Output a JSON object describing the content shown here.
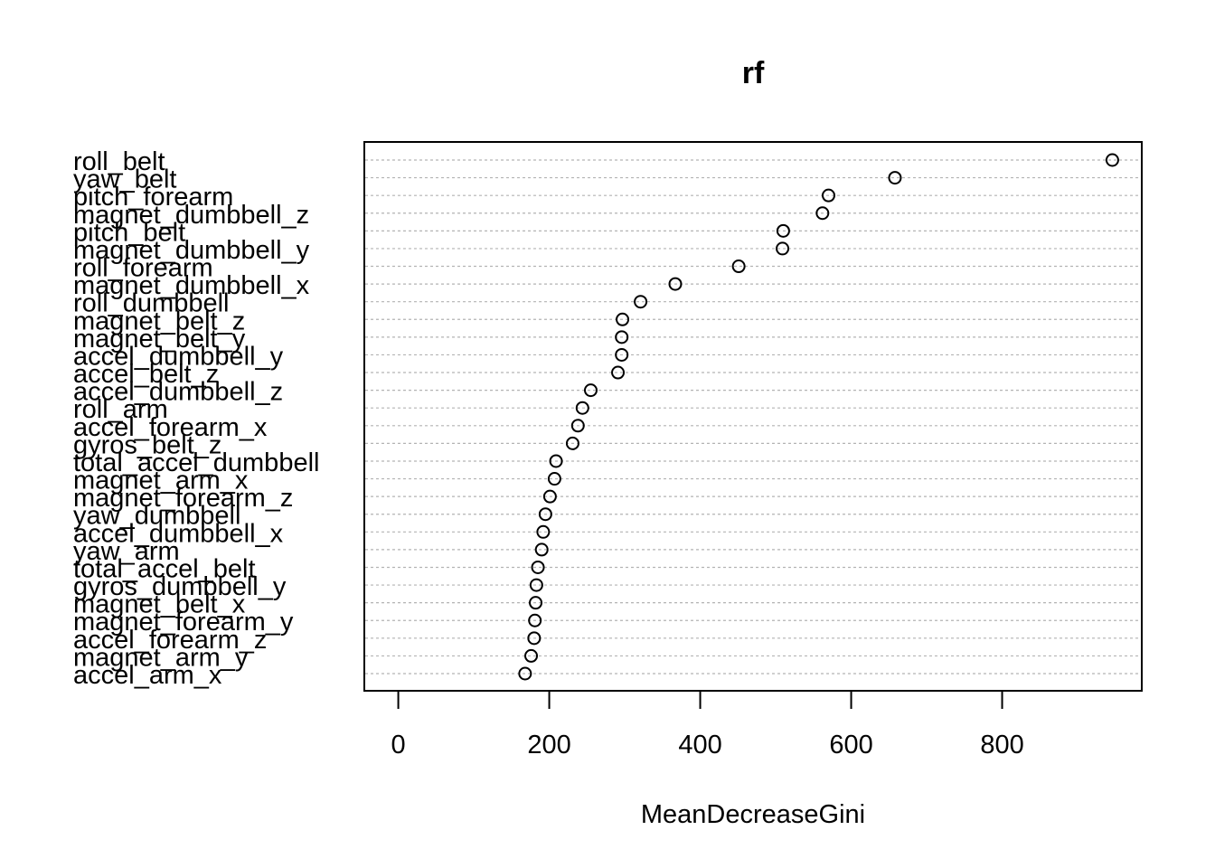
{
  "chart_data": {
    "type": "scatter",
    "subtype": "dotchart",
    "title": "rf",
    "xlabel": "MeanDecreaseGini",
    "ylabel": "",
    "xlim": [
      -45,
      985
    ],
    "xticks": [
      0,
      200,
      400,
      600,
      800
    ],
    "grid": "horizontal dashed lines per category",
    "categories": [
      "roll_belt",
      "yaw_belt",
      "pitch_forearm",
      "magnet_dumbbell_z",
      "pitch_belt",
      "magnet_dumbbell_y",
      "roll_forearm",
      "magnet_dumbbell_x",
      "roll_dumbbell",
      "magnet_belt_z",
      "magnet_belt_y",
      "accel_dumbbell_y",
      "accel_belt_z",
      "accel_dumbbell_z",
      "roll_arm",
      "accel_forearm_x",
      "gyros_belt_z",
      "total_accel_dumbbell",
      "magnet_arm_x",
      "magnet_forearm_z",
      "yaw_dumbbell",
      "accel_dumbbell_x",
      "yaw_arm",
      "total_accel_belt",
      "gyros_dumbbell_y",
      "magnet_belt_x",
      "magnet_forearm_y",
      "accel_forearm_z",
      "magnet_arm_y",
      "accel_arm_x"
    ],
    "values": [
      946,
      658,
      570,
      562,
      510,
      509,
      451,
      367,
      321,
      297,
      296,
      296,
      291,
      255,
      244,
      238,
      231,
      209,
      207,
      201,
      195,
      192,
      190,
      185,
      183,
      182,
      181,
      180,
      176,
      168
    ]
  }
}
